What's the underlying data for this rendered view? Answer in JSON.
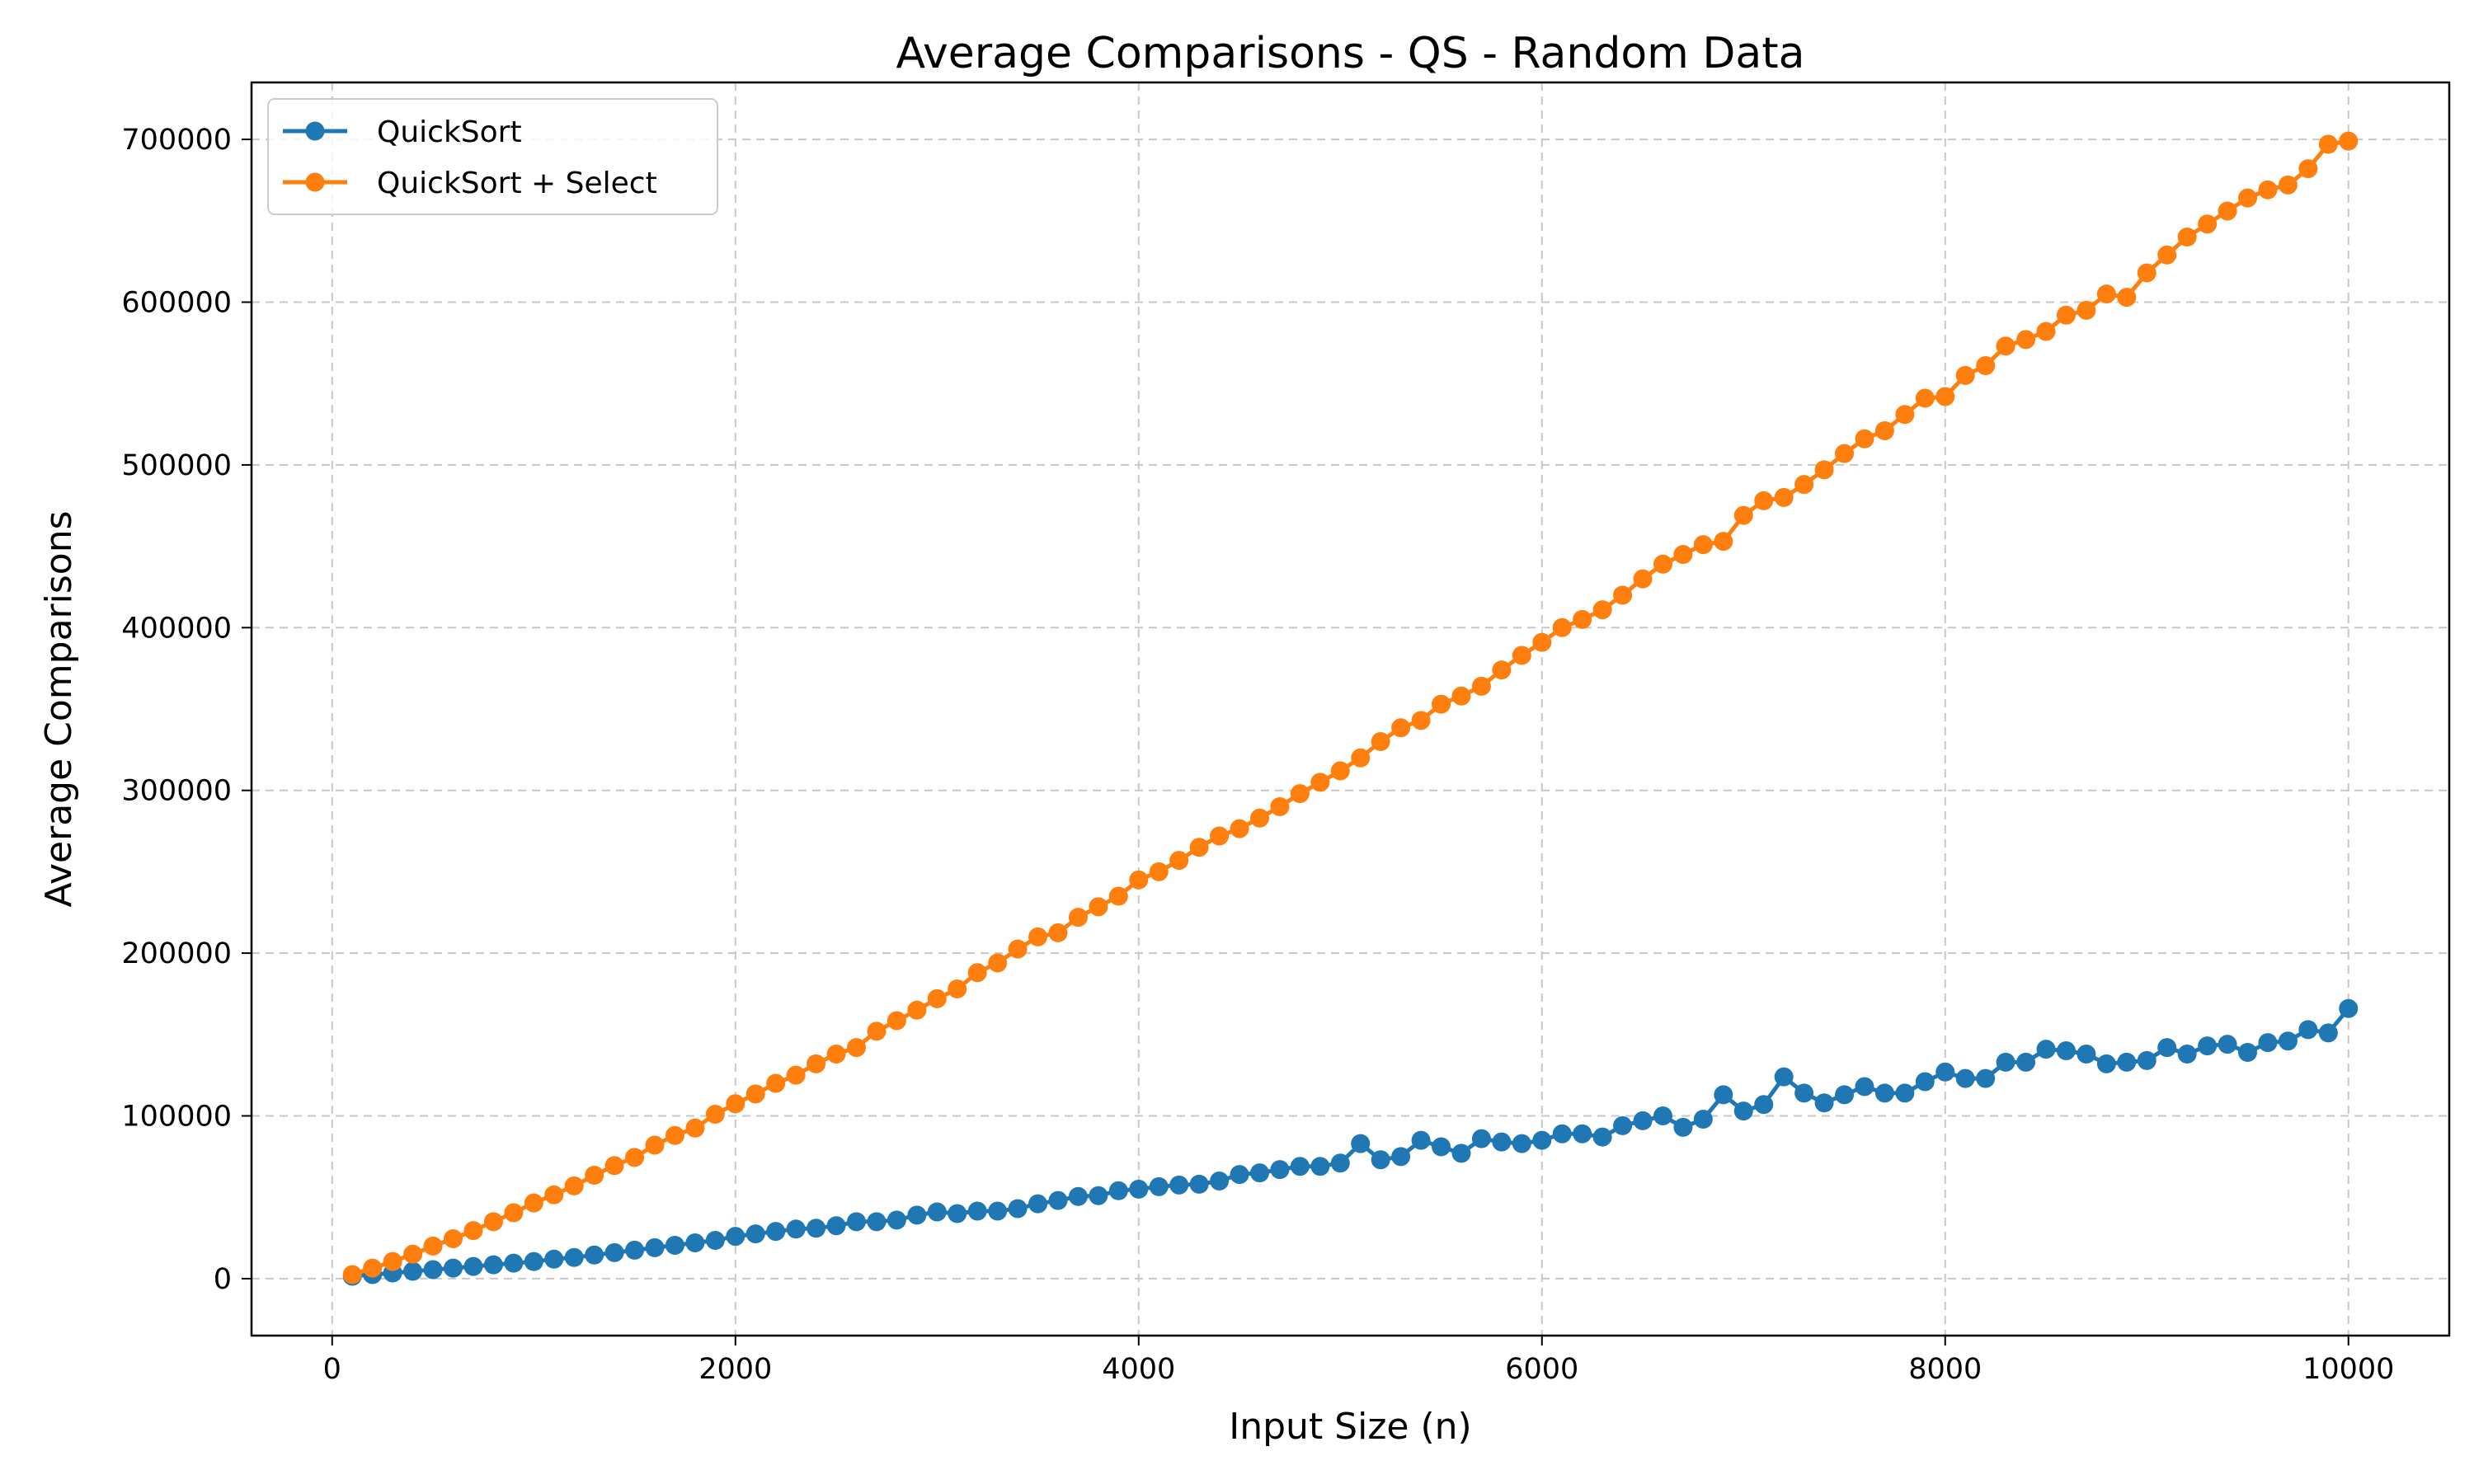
{
  "chart_data": {
    "type": "line",
    "title": "Average Comparisons - QS - Random Data",
    "xlabel": "Input Size (n)",
    "ylabel": "Average Comparisons",
    "xlim": [
      -400,
      10500
    ],
    "ylim": [
      -35000,
      735000
    ],
    "xticks": [
      0,
      2000,
      4000,
      6000,
      8000,
      10000
    ],
    "yticks": [
      0,
      100000,
      200000,
      300000,
      400000,
      500000,
      600000,
      700000
    ],
    "grid": true,
    "legend_position": "top-left",
    "x": [
      100,
      200,
      300,
      400,
      500,
      600,
      700,
      800,
      900,
      1000,
      1100,
      1200,
      1300,
      1400,
      1500,
      1600,
      1700,
      1800,
      1900,
      2000,
      2100,
      2200,
      2300,
      2400,
      2500,
      2600,
      2700,
      2800,
      2900,
      3000,
      3100,
      3200,
      3300,
      3400,
      3500,
      3600,
      3700,
      3800,
      3900,
      4000,
      4100,
      4200,
      4300,
      4400,
      4500,
      4600,
      4700,
      4800,
      4900,
      5000,
      5100,
      5200,
      5300,
      5400,
      5500,
      5600,
      5700,
      5800,
      5900,
      6000,
      6100,
      6200,
      6300,
      6400,
      6500,
      6600,
      6700,
      6800,
      6900,
      7000,
      7100,
      7200,
      7300,
      7400,
      7500,
      7600,
      7700,
      7800,
      7900,
      8000,
      8100,
      8200,
      8300,
      8400,
      8500,
      8600,
      8700,
      8800,
      8900,
      9000,
      9100,
      9200,
      9300,
      9400,
      9500,
      9600,
      9700,
      9800,
      9900,
      10000
    ],
    "series": [
      {
        "name": "QuickSort",
        "color": "#1f77b4",
        "values": [
          1500,
          2500,
          3500,
          4500,
          5500,
          6500,
          7500,
          8500,
          9500,
          10500,
          12000,
          13000,
          14500,
          16000,
          17500,
          19000,
          20500,
          22000,
          23500,
          26000,
          27500,
          29000,
          30500,
          31000,
          32500,
          35000,
          35000,
          36000,
          39000,
          41000,
          40000,
          41500,
          41500,
          43000,
          46000,
          48000,
          50500,
          51000,
          54000,
          55000,
          56500,
          57500,
          58000,
          60000,
          64000,
          65000,
          67000,
          69000,
          69000,
          71000,
          83000,
          73000,
          75000,
          85000,
          81000,
          77000,
          86000,
          84000,
          83000,
          85000,
          89000,
          89000,
          87000,
          94000,
          97000,
          100000,
          93000,
          98000,
          113000,
          103000,
          107000,
          124000,
          114000,
          108000,
          113000,
          118000,
          114000,
          114000,
          121000,
          127000,
          123000,
          123000,
          133000,
          133000,
          141000,
          140000,
          138000,
          132000,
          133000,
          134000,
          142000,
          138000,
          143000,
          144000,
          139000,
          145000,
          146000,
          153000,
          151000,
          166000
        ]
      },
      {
        "name": "QuickSort + Select",
        "color": "#ff7f0e",
        "values": [
          2500,
          6500,
          10500,
          15000,
          20000,
          24500,
          29500,
          35000,
          40500,
          46500,
          51500,
          57000,
          63500,
          69500,
          74500,
          82000,
          88000,
          92500,
          101000,
          107500,
          113500,
          120000,
          125000,
          132000,
          138000,
          142000,
          152000,
          158500,
          165000,
          172000,
          178000,
          188000,
          194000,
          202500,
          210000,
          212500,
          222000,
          228500,
          235000,
          245000,
          250000,
          257000,
          265000,
          272000,
          276500,
          283000,
          290000,
          298000,
          305000,
          312000,
          320000,
          330000,
          338500,
          343000,
          353000,
          358000,
          364000,
          374000,
          383000,
          391000,
          400000,
          405000,
          411000,
          420000,
          430000,
          439000,
          445000,
          451000,
          453000,
          469000,
          478000,
          480000,
          488000,
          497000,
          507000,
          516000,
          521000,
          531000,
          541000,
          542000,
          555000,
          561000,
          573000,
          577000,
          582000,
          592000,
          595000,
          605000,
          603000,
          618000,
          629000,
          640000,
          648000,
          656000,
          664000,
          669000,
          672000,
          682000,
          697000,
          699000
        ]
      }
    ]
  }
}
